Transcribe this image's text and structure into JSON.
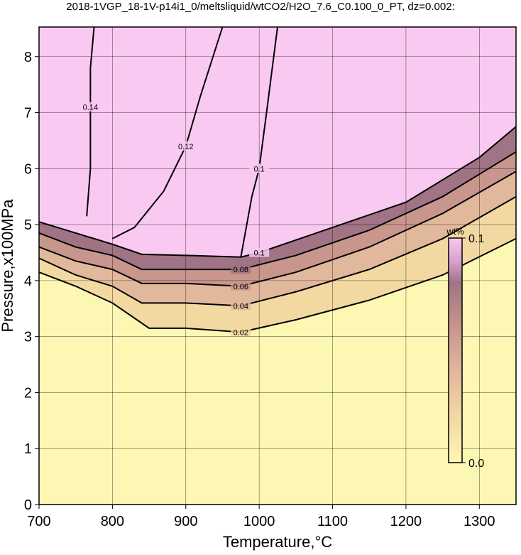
{
  "chart_data": {
    "type": "contour",
    "title": "2018-1VGP_18-1V-p14i1_0/meltsliquid/wtCO2/H2O_7.6_C0.100_0_PT, dz=0.002:",
    "xlabel": "Temperature,°C",
    "ylabel": "Pressure,x100MPa",
    "xlim": [
      700,
      1350
    ],
    "ylim": [
      0,
      8.53
    ],
    "xticks": [
      700,
      800,
      900,
      1000,
      1100,
      1200,
      1300
    ],
    "yticks": [
      0,
      1,
      2,
      3,
      4,
      5,
      6,
      7,
      8
    ],
    "grid": true,
    "colormap": {
      "values": [
        0,
        0.02,
        0.04,
        0.06,
        0.08,
        0.09,
        0.1
      ],
      "colors": [
        "#fdf7b4",
        "#f2d9a2",
        "#e2b89c",
        "#c8968c",
        "#a07484",
        "#d9a2cf",
        "#f9c9f1"
      ]
    },
    "contours": [
      {
        "level": 0.02,
        "x": [
          700,
          750,
          800,
          850,
          900,
          975,
          1050,
          1150,
          1250,
          1350
        ],
        "y": [
          4.15,
          3.9,
          3.6,
          3.15,
          3.15,
          3.08,
          3.3,
          3.65,
          4.1,
          4.75
        ]
      },
      {
        "level": 0.04,
        "x": [
          700,
          750,
          800,
          840,
          900,
          975,
          1050,
          1150,
          1250,
          1350
        ],
        "y": [
          4.4,
          4.1,
          3.9,
          3.6,
          3.6,
          3.55,
          3.8,
          4.2,
          4.75,
          5.5
        ]
      },
      {
        "level": 0.06,
        "x": [
          700,
          750,
          800,
          840,
          900,
          975,
          1050,
          1150,
          1250,
          1350
        ],
        "y": [
          4.6,
          4.35,
          4.2,
          3.95,
          3.95,
          3.9,
          4.15,
          4.6,
          5.2,
          5.95
        ]
      },
      {
        "level": 0.08,
        "x": [
          700,
          750,
          800,
          840,
          900,
          975,
          1050,
          1150,
          1250,
          1350
        ],
        "y": [
          4.85,
          4.6,
          4.45,
          4.2,
          4.2,
          4.2,
          4.45,
          4.9,
          5.5,
          6.3
        ]
      },
      {
        "level": 0.1,
        "x": [
          700,
          800,
          840,
          900,
          975,
          1000,
          1100,
          1200,
          1300,
          1350
        ],
        "y": [
          5.05,
          4.65,
          4.47,
          4.45,
          4.42,
          4.5,
          4.95,
          5.4,
          6.2,
          6.75
        ]
      },
      {
        "level": 0.1,
        "x": [
          975,
          990,
          1000,
          1010,
          1025
        ],
        "y": [
          4.42,
          5.5,
          6.0,
          7.0,
          8.53
        ]
      },
      {
        "level": 0.12,
        "x": [
          800,
          830,
          870,
          900,
          920,
          950
        ],
        "y": [
          4.75,
          4.95,
          5.6,
          6.4,
          7.3,
          8.53
        ]
      },
      {
        "level": 0.14,
        "x": [
          765,
          770,
          770,
          770,
          775
        ],
        "y": [
          5.15,
          6.0,
          7.1,
          7.8,
          8.53
        ]
      }
    ],
    "colorbar": {
      "label": "wt%",
      "lim": [
        0,
        0.1
      ],
      "ticks": [
        {
          "value": 0,
          "label": "0.0"
        },
        0.1
      ]
    }
  }
}
